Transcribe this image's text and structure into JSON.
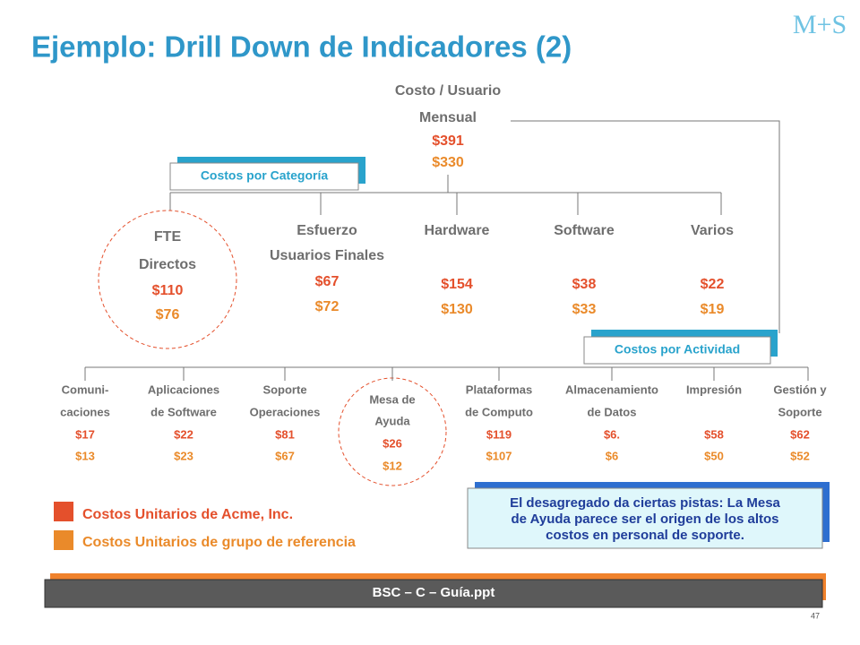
{
  "header": {
    "title": "Ejemplo: Drill Down de Indicadores (2)",
    "logo": "M+S"
  },
  "root": {
    "label": [
      "Costo / Usuario",
      "Mensual"
    ],
    "acme": "$391",
    "reference": "$330"
  },
  "category_tag": "Costos por Categoría",
  "categories": [
    {
      "label": [
        "FTE",
        "Directos"
      ],
      "acme": "$110",
      "reference": "$76"
    },
    {
      "label": [
        "Esfuerzo",
        "Usuarios Finales"
      ],
      "acme": "$67",
      "reference": "$72"
    },
    {
      "label": [
        "Hardware"
      ],
      "acme": "$154",
      "reference": "$130"
    },
    {
      "label": [
        "Software"
      ],
      "acme": "$38",
      "reference": "$33"
    },
    {
      "label": [
        "Varios"
      ],
      "acme": "$22",
      "reference": "$19"
    }
  ],
  "activity_tag": "Costos por Actividad",
  "activities": [
    {
      "label": [
        "Comuni-",
        "caciones"
      ],
      "acme": "$17",
      "reference": "$13"
    },
    {
      "label": [
        "Aplicaciones",
        "de Software"
      ],
      "acme": "$22",
      "reference": "$23"
    },
    {
      "label": [
        "Soporte",
        "Operaciones"
      ],
      "acme": "$81",
      "reference": "$67"
    },
    {
      "label": [
        "Mesa de",
        "Ayuda"
      ],
      "acme": "$26",
      "reference": "$12"
    },
    {
      "label": [
        "Plataformas",
        "de Computo"
      ],
      "acme": "$119",
      "reference": "$107"
    },
    {
      "label": [
        "Almacenamiento",
        "de Datos"
      ],
      "acme": "$6.",
      "reference": "$6"
    },
    {
      "label": [
        "Impresión"
      ],
      "acme": "$58",
      "reference": "$50"
    },
    {
      "label": [
        "Gestión y",
        "Soporte"
      ],
      "acme": "$62",
      "reference": "$52"
    }
  ],
  "legend": [
    "Costos Unitarios de Acme, Inc.",
    "Costos Unitarios de grupo de referencia"
  ],
  "note": [
    "El desagregado da ciertas pistas: La Mesa",
    "de Ayuda parece ser el origen de los altos",
    "costos en personal de soporte."
  ],
  "footer": "BSC – C – Guía.ppt",
  "page_number": "47"
}
